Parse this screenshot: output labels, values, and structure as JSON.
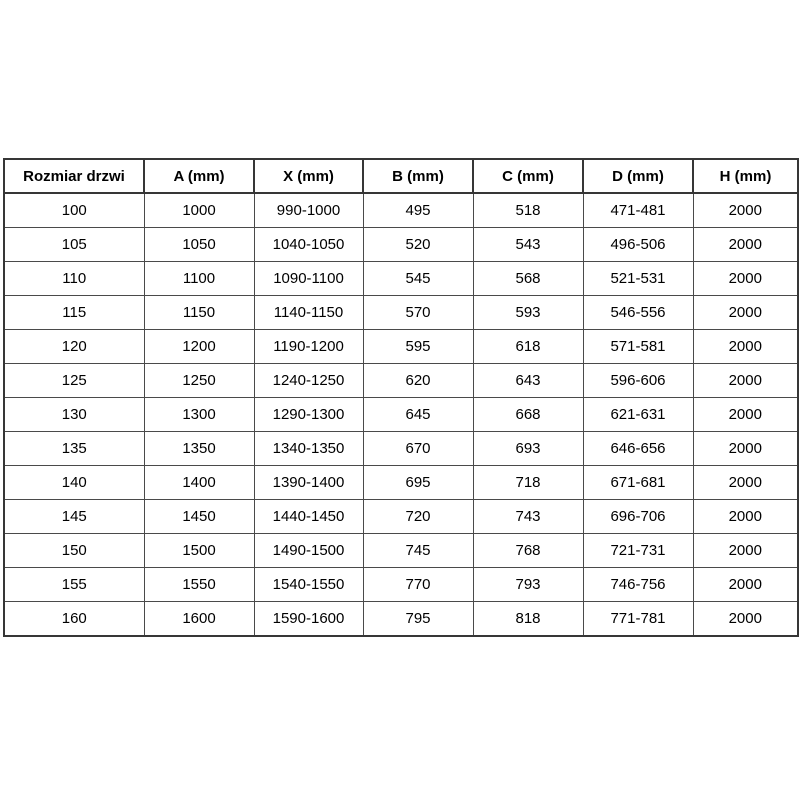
{
  "page": {
    "background_color": "#ffffff",
    "text_color": "#000000",
    "border_color_outer": "#363636",
    "border_color_inner": "#4a4a4a"
  },
  "table": {
    "columns": [
      "Rozmiar drzwi",
      "A (mm)",
      "X (mm)",
      "B (mm)",
      "C (mm)",
      "D (mm)",
      "H (mm)"
    ],
    "rows": [
      [
        "100",
        "1000",
        "990-1000",
        "495",
        "518",
        "471-481",
        "2000"
      ],
      [
        "105",
        "1050",
        "1040-1050",
        "520",
        "543",
        "496-506",
        "2000"
      ],
      [
        "110",
        "1100",
        "1090-1100",
        "545",
        "568",
        "521-531",
        "2000"
      ],
      [
        "115",
        "1150",
        "1140-1150",
        "570",
        "593",
        "546-556",
        "2000"
      ],
      [
        "120",
        "1200",
        "1190-1200",
        "595",
        "618",
        "571-581",
        "2000"
      ],
      [
        "125",
        "1250",
        "1240-1250",
        "620",
        "643",
        "596-606",
        "2000"
      ],
      [
        "130",
        "1300",
        "1290-1300",
        "645",
        "668",
        "621-631",
        "2000"
      ],
      [
        "135",
        "1350",
        "1340-1350",
        "670",
        "693",
        "646-656",
        "2000"
      ],
      [
        "140",
        "1400",
        "1390-1400",
        "695",
        "718",
        "671-681",
        "2000"
      ],
      [
        "145",
        "1450",
        "1440-1450",
        "720",
        "743",
        "696-706",
        "2000"
      ],
      [
        "150",
        "1500",
        "1490-1500",
        "745",
        "768",
        "721-731",
        "2000"
      ],
      [
        "155",
        "1550",
        "1540-1550",
        "770",
        "793",
        "746-756",
        "2000"
      ],
      [
        "160",
        "1600",
        "1590-1600",
        "795",
        "818",
        "771-781",
        "2000"
      ]
    ]
  }
}
